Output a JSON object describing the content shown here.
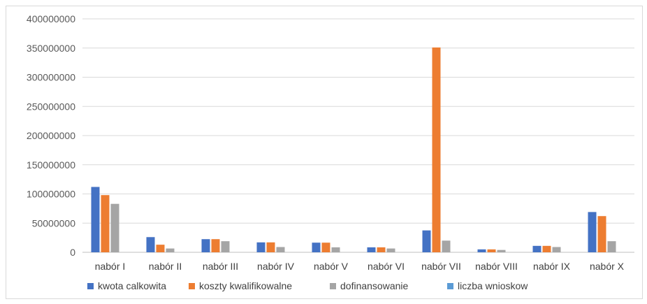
{
  "chart_data": {
    "type": "bar",
    "title": "",
    "xlabel": "",
    "ylabel": "",
    "ylim": [
      0,
      400000000
    ],
    "yticks": [
      0,
      50000000,
      100000000,
      150000000,
      200000000,
      250000000,
      300000000,
      350000000,
      400000000
    ],
    "grid": true,
    "legend_position": "bottom",
    "categories": [
      "nabór I",
      "nabór II",
      "nabór III",
      "nabór IV",
      "nabór V",
      "nabór VI",
      "nabór VII",
      "nabór VIII",
      "nabór IX",
      "nabór X"
    ],
    "series": [
      {
        "name": "kwota calkowita",
        "color": "#4472c4",
        "values": [
          112000000,
          26000000,
          22500000,
          17000000,
          16500000,
          8500000,
          37500000,
          5000000,
          11000000,
          69000000
        ]
      },
      {
        "name": "koszty kwalifikowalne",
        "color": "#ed7d31",
        "values": [
          98000000,
          13000000,
          22500000,
          17000000,
          16500000,
          8500000,
          351000000,
          5000000,
          11000000,
          62000000
        ]
      },
      {
        "name": "dofinansowanie",
        "color": "#a5a5a5",
        "values": [
          83000000,
          6500000,
          19000000,
          9000000,
          8500000,
          6500000,
          20000000,
          4000000,
          9000000,
          19000000
        ]
      },
      {
        "name": "liczba wnioskow",
        "color": "#5b9bd5",
        "values": [
          20,
          5,
          5,
          4,
          4,
          3,
          10,
          2,
          3,
          15
        ]
      }
    ]
  }
}
